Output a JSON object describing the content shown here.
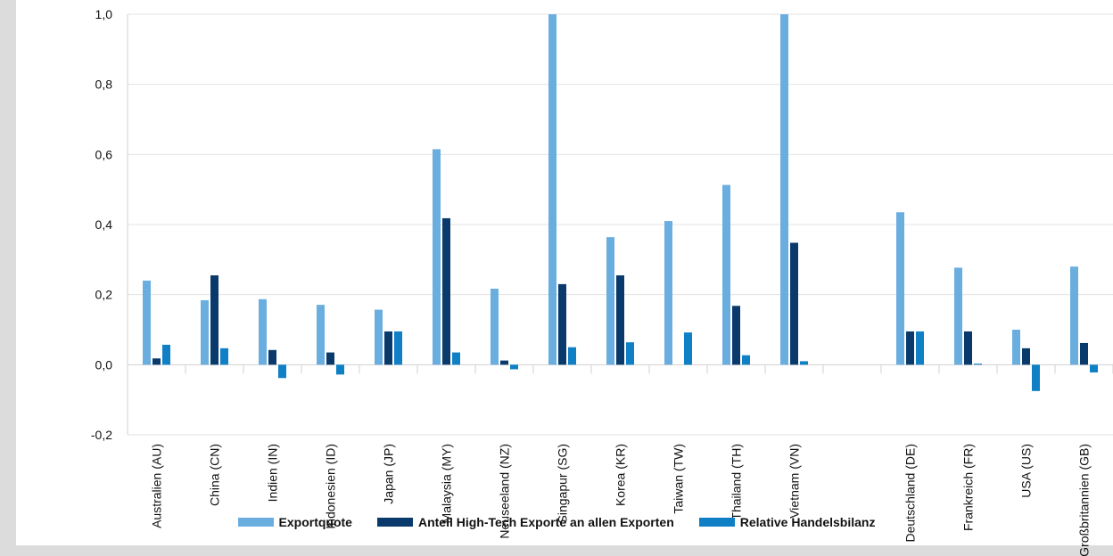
{
  "chart_data": {
    "type": "bar",
    "categories": [
      "Australien (AU)",
      "China (CN)",
      "Indien (IN)",
      "Indonesien (ID)",
      "Japan (JP)",
      "Malaysia (MY)",
      "Neuseeland (NZ)",
      "Singapur (SG)",
      "Korea (KR)",
      "Taiwan (TW)",
      "Thailand (TH)",
      "Vietnam (VN)",
      "",
      "Deutschland (DE)",
      "Frankreich (FR)",
      "USA (US)",
      "Großbritannien (GB)"
    ],
    "series": [
      {
        "name": "Exportquote",
        "color": "#6aaee0",
        "values": [
          0.24,
          0.184,
          0.187,
          0.171,
          0.157,
          0.615,
          0.217,
          1.0,
          0.364,
          0.41,
          0.513,
          1.0,
          null,
          0.435,
          0.277,
          0.1,
          0.28
        ]
      },
      {
        "name": "Anteil High-Tech Exporte an allen Exporten",
        "color": "#0a3a6b",
        "values": [
          0.018,
          0.255,
          0.042,
          0.035,
          0.095,
          0.418,
          0.012,
          0.23,
          0.255,
          null,
          0.168,
          0.348,
          null,
          0.095,
          0.095,
          0.047,
          0.062
        ]
      },
      {
        "name": "Relative Handelsbilanz",
        "color": "#0f7fc6",
        "values": [
          0.057,
          0.047,
          -0.038,
          -0.028,
          0.095,
          0.035,
          -0.013,
          0.05,
          0.064,
          0.092,
          0.027,
          0.01,
          null,
          0.095,
          0.003,
          -0.075,
          -0.022
        ]
      }
    ],
    "ylim": [
      -0.2,
      1.0
    ],
    "yticks": [
      "-0,2",
      "0,0",
      "0,2",
      "0,4",
      "0,6",
      "0,8",
      "1,0"
    ],
    "grid": true,
    "legend_position": "bottom"
  }
}
